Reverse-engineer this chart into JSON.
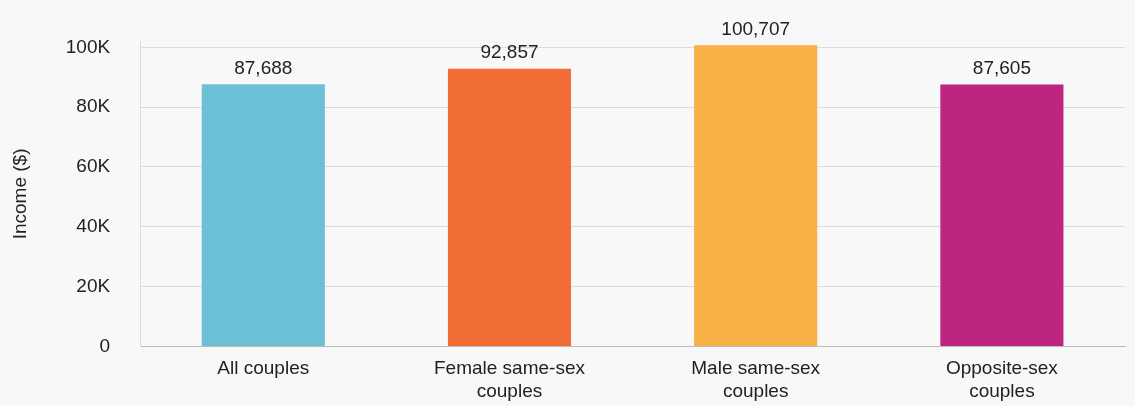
{
  "chart_data": {
    "type": "bar",
    "ylabel": "Income ($)",
    "categories": [
      "All couples",
      "Female same-sex couples",
      "Male same-sex couples",
      "Opposite-sex couples"
    ],
    "values": [
      87688,
      92857,
      100707,
      87605
    ],
    "colors": [
      "#6cc0d6",
      "#f26d35",
      "#f9b045",
      "#be2580"
    ],
    "value_labels": [
      "87,688",
      "92,857",
      "100,707",
      "87,605"
    ],
    "ylim": [
      0,
      102000
    ],
    "yticks": [
      {
        "value": 0,
        "label": "0"
      },
      {
        "value": 20000,
        "label": "20K"
      },
      {
        "value": 40000,
        "label": "40K"
      },
      {
        "value": 60000,
        "label": "60K"
      },
      {
        "value": 80000,
        "label": "80K"
      },
      {
        "value": 100000,
        "label": "100K"
      }
    ],
    "grid": "y",
    "legend": false
  }
}
